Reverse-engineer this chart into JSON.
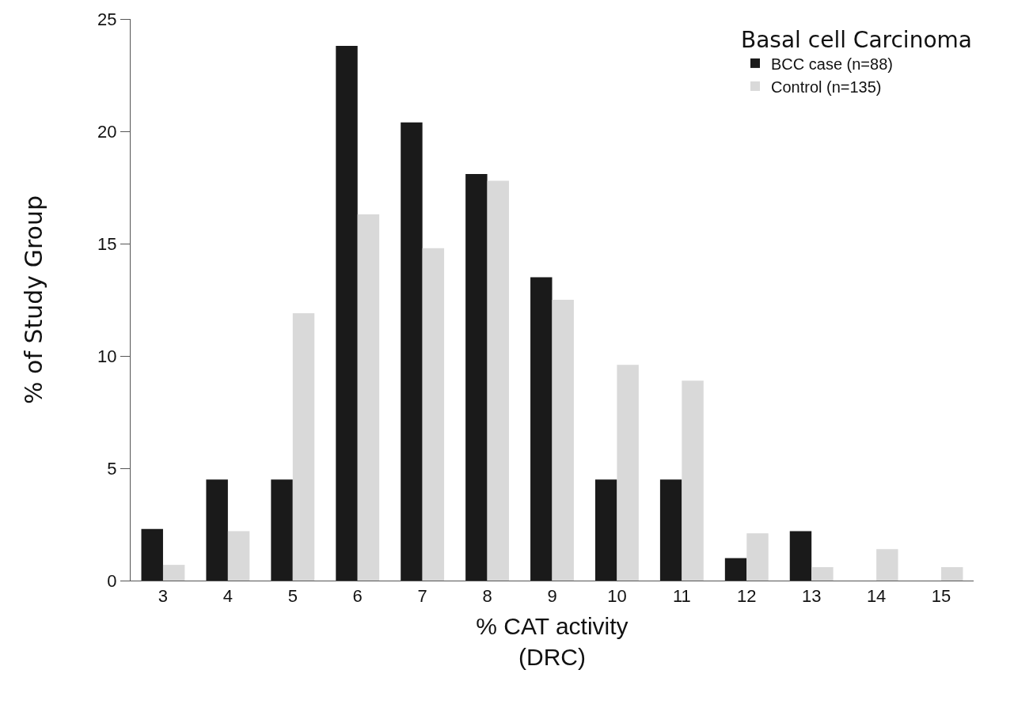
{
  "chart_data": {
    "type": "bar",
    "categories": [
      "3",
      "4",
      "5",
      "6",
      "7",
      "8",
      "9",
      "10",
      "11",
      "12",
      "13",
      "14",
      "15"
    ],
    "series": [
      {
        "name": "BCC case (n=88)",
        "color": "#1a1a1a",
        "values": [
          2.3,
          4.5,
          4.5,
          23.8,
          20.4,
          18.1,
          13.5,
          4.5,
          4.5,
          1.0,
          2.2,
          0,
          0
        ]
      },
      {
        "name": "Control (n=135)",
        "color": "#d9d9d9",
        "values": [
          0.7,
          2.2,
          11.9,
          16.3,
          14.8,
          17.8,
          12.5,
          9.6,
          8.9,
          2.1,
          0.6,
          1.4,
          0.6
        ]
      }
    ],
    "xlabel": "% CAT activity\n(DRC)",
    "ylabel": "% of Study Group",
    "legend_title": "Basal cell Carcinoma",
    "ylim": [
      0,
      25
    ],
    "yticks": [
      0,
      5,
      10,
      15,
      20,
      25
    ],
    "legend": "top right"
  }
}
